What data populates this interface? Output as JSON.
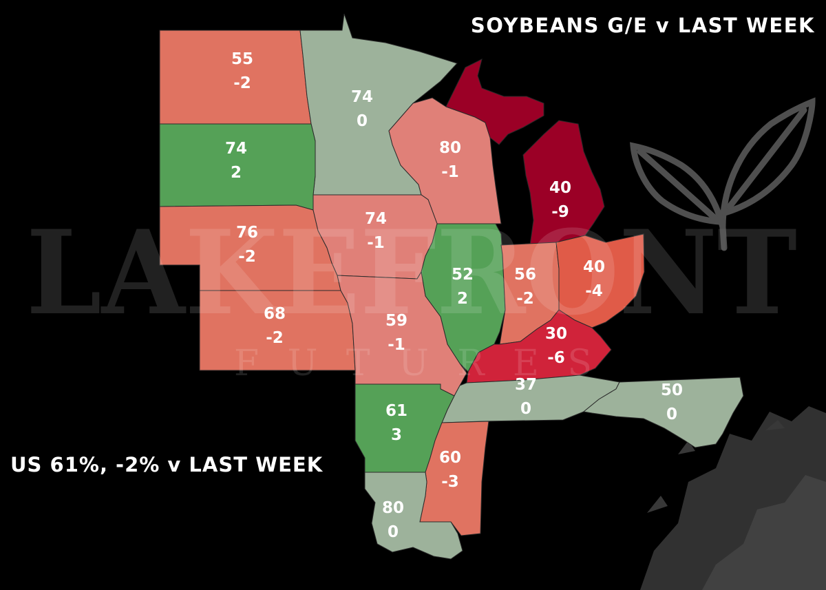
{
  "title": "SOYBEANS G/E v LAST WEEK",
  "summary": "US 61%, -2% v LAST WEEK",
  "watermark": {
    "brand": "LAKEFRONT",
    "sub": "FUTURES"
  },
  "colors": {
    "background": "#000000",
    "pale_green": "#9db29b",
    "green": "#55a157",
    "light_red": "#e08078",
    "salmon": "#e07361",
    "crimson": "#d0233a",
    "dark_red": "#9b0026"
  },
  "states": [
    {
      "id": "north-dakota",
      "ge": "55",
      "change": "-2",
      "color": "#e07361"
    },
    {
      "id": "minnesota",
      "ge": "74",
      "change": "0",
      "color": "#9db29b"
    },
    {
      "id": "south-dakota",
      "ge": "74",
      "change": "2",
      "color": "#55a157"
    },
    {
      "id": "wisconsin",
      "ge": "80",
      "change": "-1",
      "color": "#e08078"
    },
    {
      "id": "michigan",
      "ge": "40",
      "change": "-9",
      "color": "#9b0026"
    },
    {
      "id": "nebraska",
      "ge": "76",
      "change": "-2",
      "color": "#e07361"
    },
    {
      "id": "iowa",
      "ge": "74",
      "change": "-1",
      "color": "#e08078"
    },
    {
      "id": "illinois",
      "ge": "52",
      "change": "2",
      "color": "#55a157"
    },
    {
      "id": "indiana",
      "ge": "56",
      "change": "-2",
      "color": "#e07361"
    },
    {
      "id": "ohio",
      "ge": "40",
      "change": "-4",
      "color": "#e05b48"
    },
    {
      "id": "kansas",
      "ge": "68",
      "change": "-2",
      "color": "#e07361"
    },
    {
      "id": "missouri",
      "ge": "59",
      "change": "-1",
      "color": "#e08078"
    },
    {
      "id": "kentucky",
      "ge": "30",
      "change": "-6",
      "color": "#d0233a"
    },
    {
      "id": "tennessee",
      "ge": "37",
      "change": "0",
      "color": "#9db29b"
    },
    {
      "id": "north-carolina",
      "ge": "50",
      "change": "0",
      "color": "#9db29b"
    },
    {
      "id": "arkansas",
      "ge": "61",
      "change": "3",
      "color": "#55a157"
    },
    {
      "id": "mississippi",
      "ge": "60",
      "change": "-3",
      "color": "#e07361"
    },
    {
      "id": "louisiana",
      "ge": "80",
      "change": "0",
      "color": "#9db29b"
    }
  ]
}
